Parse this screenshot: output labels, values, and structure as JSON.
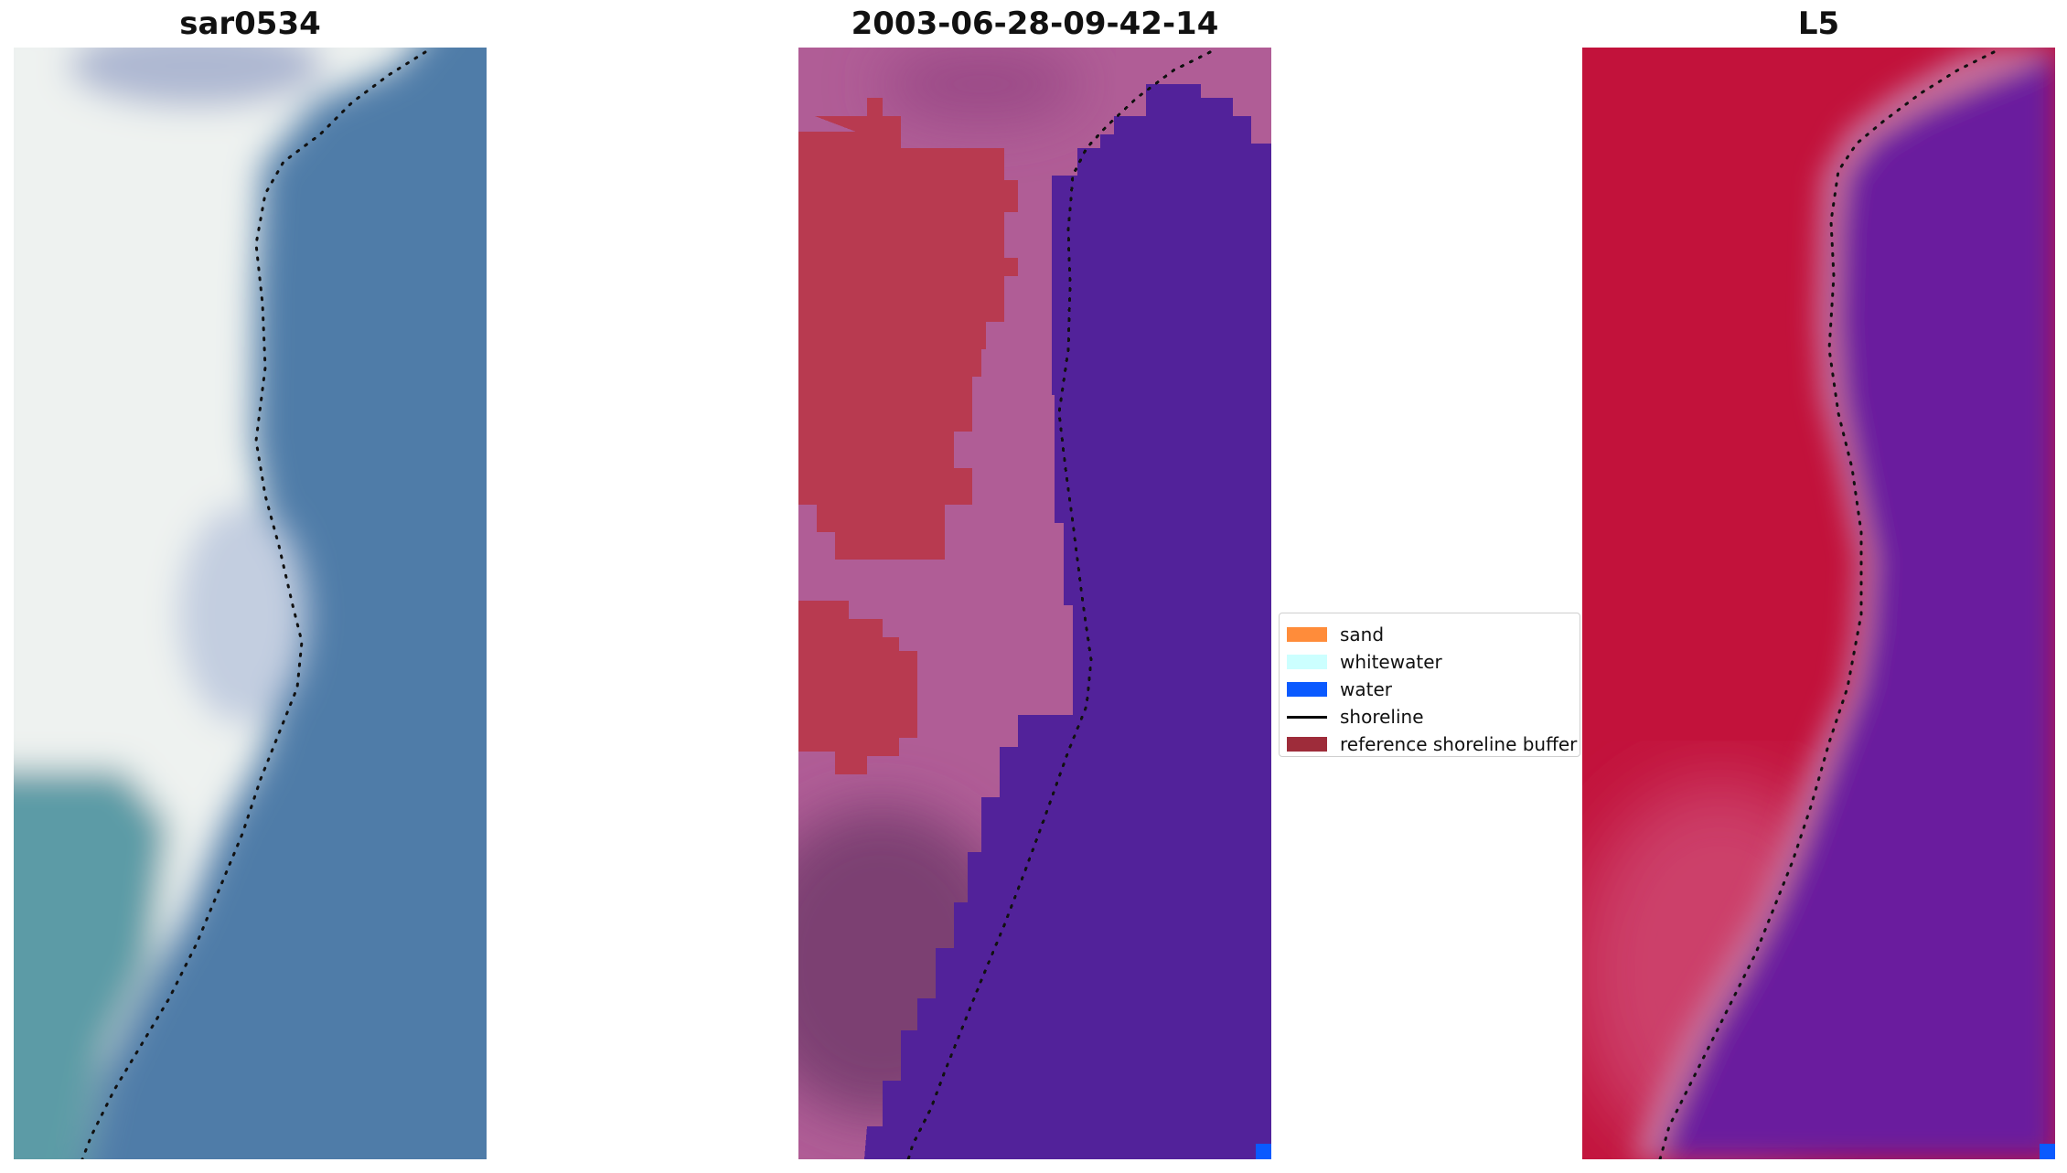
{
  "panels": [
    {
      "title": "sar0534"
    },
    {
      "title": "2003-06-28-09-42-14"
    },
    {
      "title": "L5"
    }
  ],
  "legend": {
    "items": [
      {
        "label": "sand",
        "color": "#ff8c3a",
        "kind": "patch"
      },
      {
        "label": "whitewater",
        "color": "#ccffff",
        "kind": "patch"
      },
      {
        "label": "water",
        "color": "#0a5aff",
        "kind": "patch"
      },
      {
        "label": "shoreline",
        "color": "#000000",
        "kind": "line"
      },
      {
        "label": "reference shoreline buffer",
        "color": "#9e2c3a",
        "kind": "patch"
      }
    ]
  },
  "colors": {
    "rgb_sand": "#eef2f0",
    "rgb_water": "#4f7ca8",
    "rgb_teal": "#5b9ba6",
    "class_land": "#b05d96",
    "class_buffer": "#b83a50",
    "class_water": "#52229a",
    "class_dark_land": "#7c3f72",
    "index_land": "#c2123b",
    "index_water": "#6a1a9e",
    "index_edge": "#c8709a",
    "water_marker": "#0a5aff"
  }
}
